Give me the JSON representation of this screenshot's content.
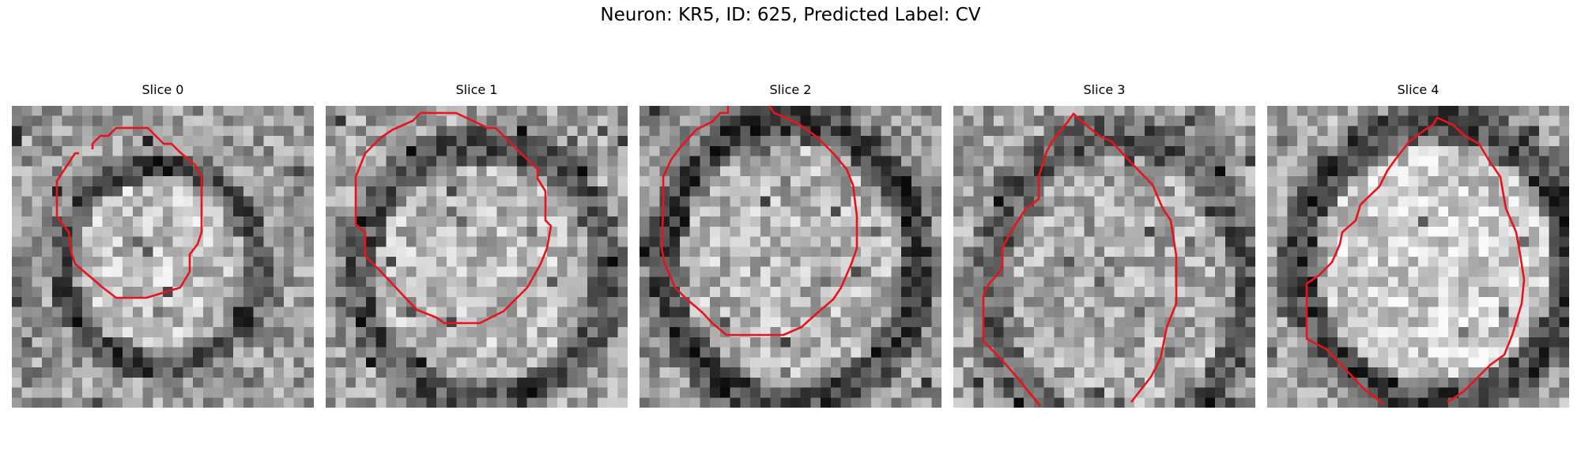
{
  "figure": {
    "title": "Neuron: KR5, ID: 625, Predicted Label: CV"
  },
  "colors": {
    "contour": "#e8141b",
    "background": "#ffffff"
  },
  "panels": [
    {
      "title": "Slice 0"
    },
    {
      "title": "Slice 1"
    },
    {
      "title": "Slice 2"
    },
    {
      "title": "Slice 3"
    },
    {
      "title": "Slice 4"
    }
  ]
}
